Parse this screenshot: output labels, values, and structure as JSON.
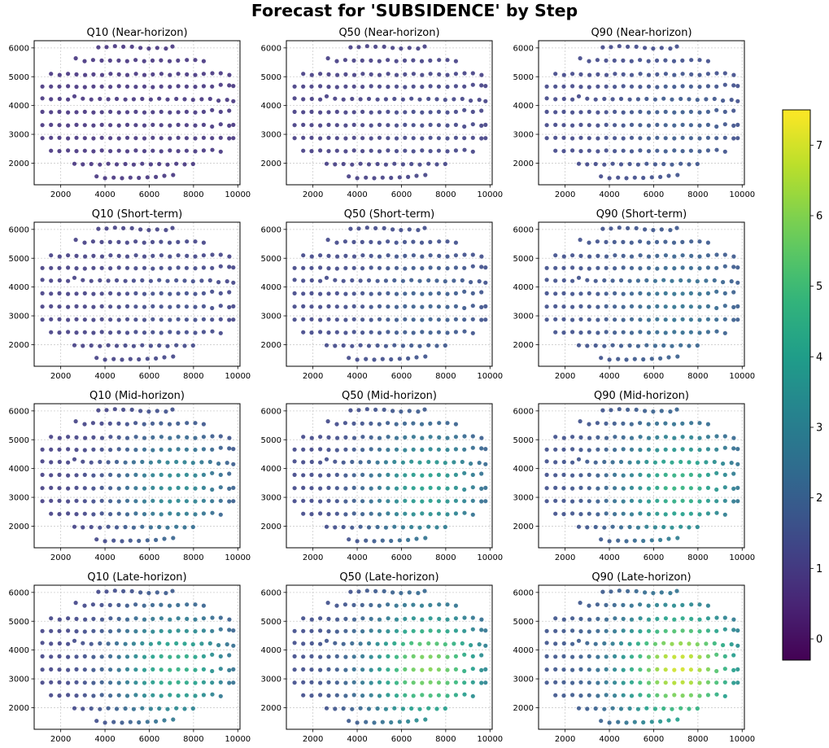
{
  "title": "Forecast for 'SUBSIDENCE' by Step",
  "chart_data": {
    "type": "scatter",
    "title": "Forecast for 'SUBSIDENCE' by Step",
    "xlim": [
      800,
      10100
    ],
    "ylim": [
      1250,
      6250
    ],
    "xticks": [
      2000,
      4000,
      6000,
      8000,
      10000
    ],
    "yticks": [
      2000,
      3000,
      4000,
      5000,
      6000
    ],
    "grid": true,
    "colormap": "viridis",
    "colorbar": {
      "min": -0.3,
      "max": 7.5,
      "ticks": [
        0,
        1,
        2,
        3,
        4,
        5,
        6,
        7
      ],
      "placement": "right"
    },
    "points": [
      [
        3700,
        6020
      ],
      [
        4070,
        6030
      ],
      [
        4450,
        6060
      ],
      [
        4830,
        6040
      ],
      [
        5220,
        6040
      ],
      [
        5600,
        6000
      ],
      [
        5980,
        5980
      ],
      [
        6360,
        6000
      ],
      [
        6750,
        5980
      ],
      [
        7050,
        6050
      ],
      [
        2680,
        5640
      ],
      [
        3080,
        5540
      ],
      [
        3460,
        5580
      ],
      [
        3850,
        5560
      ],
      [
        4230,
        5560
      ],
      [
        4620,
        5560
      ],
      [
        5000,
        5540
      ],
      [
        5380,
        5580
      ],
      [
        5770,
        5540
      ],
      [
        6150,
        5560
      ],
      [
        6530,
        5570
      ],
      [
        6920,
        5540
      ],
      [
        7300,
        5560
      ],
      [
        7700,
        5580
      ],
      [
        8080,
        5580
      ],
      [
        8460,
        5540
      ],
      [
        1560,
        5100
      ],
      [
        1950,
        5060
      ],
      [
        2330,
        5100
      ],
      [
        2710,
        5080
      ],
      [
        3100,
        5060
      ],
      [
        3480,
        5080
      ],
      [
        3870,
        5060
      ],
      [
        4250,
        5100
      ],
      [
        4630,
        5080
      ],
      [
        5010,
        5060
      ],
      [
        5400,
        5100
      ],
      [
        5780,
        5060
      ],
      [
        6160,
        5080
      ],
      [
        6550,
        5100
      ],
      [
        6930,
        5060
      ],
      [
        7310,
        5100
      ],
      [
        7700,
        5080
      ],
      [
        8080,
        5060
      ],
      [
        8460,
        5100
      ],
      [
        8850,
        5120
      ],
      [
        9230,
        5120
      ],
      [
        9620,
        5060
      ],
      [
        1170,
        4660
      ],
      [
        1560,
        4660
      ],
      [
        1940,
        4660
      ],
      [
        2330,
        4670
      ],
      [
        2710,
        4650
      ],
      [
        3090,
        4640
      ],
      [
        3480,
        4660
      ],
      [
        3860,
        4660
      ],
      [
        4240,
        4650
      ],
      [
        4630,
        4670
      ],
      [
        5010,
        4660
      ],
      [
        5390,
        4650
      ],
      [
        5780,
        4660
      ],
      [
        6160,
        4640
      ],
      [
        6540,
        4660
      ],
      [
        6930,
        4650
      ],
      [
        7310,
        4670
      ],
      [
        7690,
        4660
      ],
      [
        8080,
        4650
      ],
      [
        8460,
        4670
      ],
      [
        8840,
        4660
      ],
      [
        9230,
        4720
      ],
      [
        9610,
        4700
      ],
      [
        9800,
        4680
      ],
      [
        1170,
        4250
      ],
      [
        1560,
        4220
      ],
      [
        1950,
        4230
      ],
      [
        2330,
        4210
      ],
      [
        2620,
        4320
      ],
      [
        3000,
        4240
      ],
      [
        3380,
        4210
      ],
      [
        3770,
        4230
      ],
      [
        4150,
        4220
      ],
      [
        4530,
        4230
      ],
      [
        4920,
        4210
      ],
      [
        5300,
        4220
      ],
      [
        5680,
        4230
      ],
      [
        6070,
        4210
      ],
      [
        6450,
        4240
      ],
      [
        6830,
        4210
      ],
      [
        7220,
        4230
      ],
      [
        7600,
        4220
      ],
      [
        7980,
        4200
      ],
      [
        8370,
        4220
      ],
      [
        8750,
        4230
      ],
      [
        9130,
        4170
      ],
      [
        9520,
        4200
      ],
      [
        9800,
        4150
      ],
      [
        1170,
        3780
      ],
      [
        1560,
        3770
      ],
      [
        1940,
        3780
      ],
      [
        2330,
        3760
      ],
      [
        2710,
        3770
      ],
      [
        3090,
        3780
      ],
      [
        3480,
        3760
      ],
      [
        3860,
        3770
      ],
      [
        4240,
        3780
      ],
      [
        4630,
        3760
      ],
      [
        5010,
        3770
      ],
      [
        5390,
        3780
      ],
      [
        5780,
        3760
      ],
      [
        6160,
        3770
      ],
      [
        6540,
        3780
      ],
      [
        6930,
        3760
      ],
      [
        7310,
        3770
      ],
      [
        7690,
        3780
      ],
      [
        8080,
        3760
      ],
      [
        8460,
        3780
      ],
      [
        8840,
        3840
      ],
      [
        9230,
        3780
      ],
      [
        9610,
        3820
      ],
      [
        1170,
        3320
      ],
      [
        1560,
        3330
      ],
      [
        1940,
        3320
      ],
      [
        2330,
        3310
      ],
      [
        2710,
        3330
      ],
      [
        3090,
        3320
      ],
      [
        3480,
        3310
      ],
      [
        3860,
        3330
      ],
      [
        4240,
        3320
      ],
      [
        4630,
        3310
      ],
      [
        5010,
        3330
      ],
      [
        5390,
        3320
      ],
      [
        5780,
        3310
      ],
      [
        6160,
        3330
      ],
      [
        6540,
        3320
      ],
      [
        6930,
        3310
      ],
      [
        7310,
        3330
      ],
      [
        7690,
        3320
      ],
      [
        8080,
        3310
      ],
      [
        8460,
        3330
      ],
      [
        8840,
        3270
      ],
      [
        9230,
        3350
      ],
      [
        9610,
        3300
      ],
      [
        9800,
        3330
      ],
      [
        1170,
        2870
      ],
      [
        1560,
        2880
      ],
      [
        1940,
        2880
      ],
      [
        2330,
        2860
      ],
      [
        2710,
        2880
      ],
      [
        3090,
        2870
      ],
      [
        3480,
        2860
      ],
      [
        3860,
        2880
      ],
      [
        4240,
        2870
      ],
      [
        4630,
        2860
      ],
      [
        5010,
        2880
      ],
      [
        5390,
        2870
      ],
      [
        5780,
        2860
      ],
      [
        6160,
        2880
      ],
      [
        6540,
        2870
      ],
      [
        6930,
        2860
      ],
      [
        7310,
        2880
      ],
      [
        7690,
        2870
      ],
      [
        8080,
        2860
      ],
      [
        8460,
        2880
      ],
      [
        8840,
        2870
      ],
      [
        9230,
        2880
      ],
      [
        9610,
        2860
      ],
      [
        9800,
        2870
      ],
      [
        1560,
        2430
      ],
      [
        1940,
        2420
      ],
      [
        2330,
        2440
      ],
      [
        2710,
        2420
      ],
      [
        3090,
        2430
      ],
      [
        3480,
        2410
      ],
      [
        3860,
        2440
      ],
      [
        4240,
        2420
      ],
      [
        4630,
        2430
      ],
      [
        5010,
        2410
      ],
      [
        5390,
        2440
      ],
      [
        5780,
        2420
      ],
      [
        6160,
        2430
      ],
      [
        6540,
        2410
      ],
      [
        6930,
        2440
      ],
      [
        7310,
        2420
      ],
      [
        7690,
        2430
      ],
      [
        8080,
        2410
      ],
      [
        8460,
        2440
      ],
      [
        8850,
        2460
      ],
      [
        9230,
        2400
      ],
      [
        2620,
        1980
      ],
      [
        3000,
        1960
      ],
      [
        3380,
        1970
      ],
      [
        3770,
        1950
      ],
      [
        4150,
        1980
      ],
      [
        4530,
        1960
      ],
      [
        4920,
        1970
      ],
      [
        5300,
        1950
      ],
      [
        5680,
        1980
      ],
      [
        6070,
        1960
      ],
      [
        6450,
        1970
      ],
      [
        6830,
        1950
      ],
      [
        7220,
        1980
      ],
      [
        7600,
        1960
      ],
      [
        7980,
        1970
      ],
      [
        3620,
        1540
      ],
      [
        4000,
        1480
      ],
      [
        4390,
        1500
      ],
      [
        4770,
        1480
      ],
      [
        5150,
        1500
      ],
      [
        5530,
        1490
      ],
      [
        5920,
        1510
      ],
      [
        6300,
        1520
      ],
      [
        6680,
        1560
      ],
      [
        7080,
        1590
      ]
    ],
    "panels": [
      {
        "title": "Q10 (Near-horizon)",
        "amp": 0.05,
        "base": 0.85
      },
      {
        "title": "Q50 (Near-horizon)",
        "amp": 0.3,
        "base": 1.05
      },
      {
        "title": "Q90 (Near-horizon)",
        "amp": 0.6,
        "base": 1.3
      },
      {
        "title": "Q10 (Short-term)",
        "amp": 0.4,
        "base": 1.1
      },
      {
        "title": "Q50 (Short-term)",
        "amp": 0.7,
        "base": 1.3
      },
      {
        "title": "Q90 (Short-term)",
        "amp": 1.1,
        "base": 1.5
      },
      {
        "title": "Q10 (Mid-horizon)",
        "amp": 2.3,
        "base": 1.1
      },
      {
        "title": "Q50 (Mid-horizon)",
        "amp": 2.8,
        "base": 1.3
      },
      {
        "title": "Q90 (Mid-horizon)",
        "amp": 3.2,
        "base": 1.5
      },
      {
        "title": "Q10 (Late-horizon)",
        "amp": 3.4,
        "base": 1.2
      },
      {
        "title": "Q50 (Late-horizon)",
        "amp": 4.6,
        "base": 1.4
      },
      {
        "title": "Q90 (Late-horizon)",
        "amp": 5.4,
        "base": 1.6
      }
    ]
  }
}
